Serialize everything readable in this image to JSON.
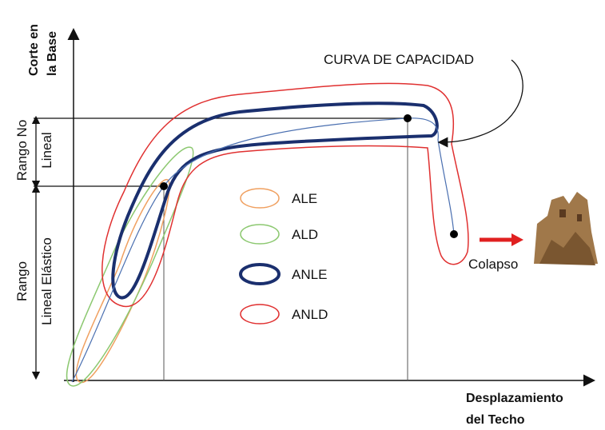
{
  "y_axis_label": [
    "Corte en",
    "la Base"
  ],
  "x_axis_label": [
    "Desplazamiento",
    "del Techo"
  ],
  "ranges": {
    "non_linear": [
      "Rango No",
      "Lineal"
    ],
    "linear_elastic": [
      "Rango",
      "Lineal Elástico"
    ]
  },
  "annotations": {
    "capacity_curve": "CURVA DE CAPACIDAD",
    "collapse": "Colapso"
  },
  "legend": [
    "ALE",
    "ALD",
    "ANLE",
    "ANLD"
  ]
}
